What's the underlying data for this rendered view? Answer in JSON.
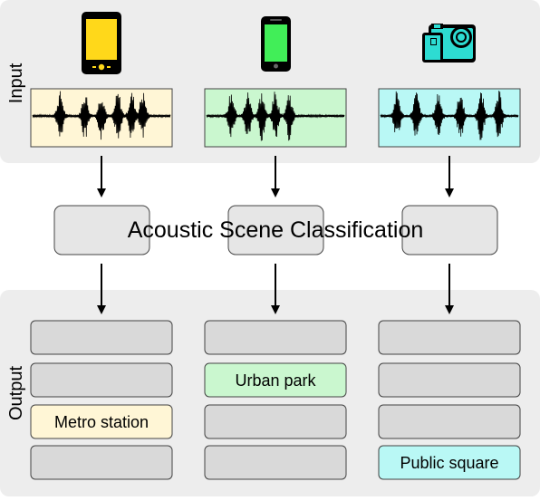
{
  "input": {
    "label": "Input",
    "devices": [
      {
        "icon": "smartphone-icon",
        "color": "#ffd81a",
        "wave_color": "#fff6d6"
      },
      {
        "icon": "smartphone-icon",
        "color": "#41ee58",
        "wave_color": "#caf7cf"
      },
      {
        "icon": "action-camera-icon",
        "color": "#2ddcd2",
        "wave_color": "#b9f8f5"
      }
    ]
  },
  "classifier": {
    "label": "Acoustic Scene Classification"
  },
  "output": {
    "label": "Output",
    "columns": [
      {
        "slots": [
          "",
          "",
          "Metro station",
          ""
        ],
        "highlight": 2,
        "highlight_color": "#fff6d6"
      },
      {
        "slots": [
          "",
          "Urban park",
          "",
          ""
        ],
        "highlight": 1,
        "highlight_color": "#caf7cf"
      },
      {
        "slots": [
          "",
          "",
          "",
          "Public square"
        ],
        "highlight": 3,
        "highlight_color": "#b9f8f5"
      }
    ]
  },
  "colors": {
    "panel": "#ededed",
    "box": "#e6e6e6",
    "empty_slot": "#d9d9d9"
  }
}
